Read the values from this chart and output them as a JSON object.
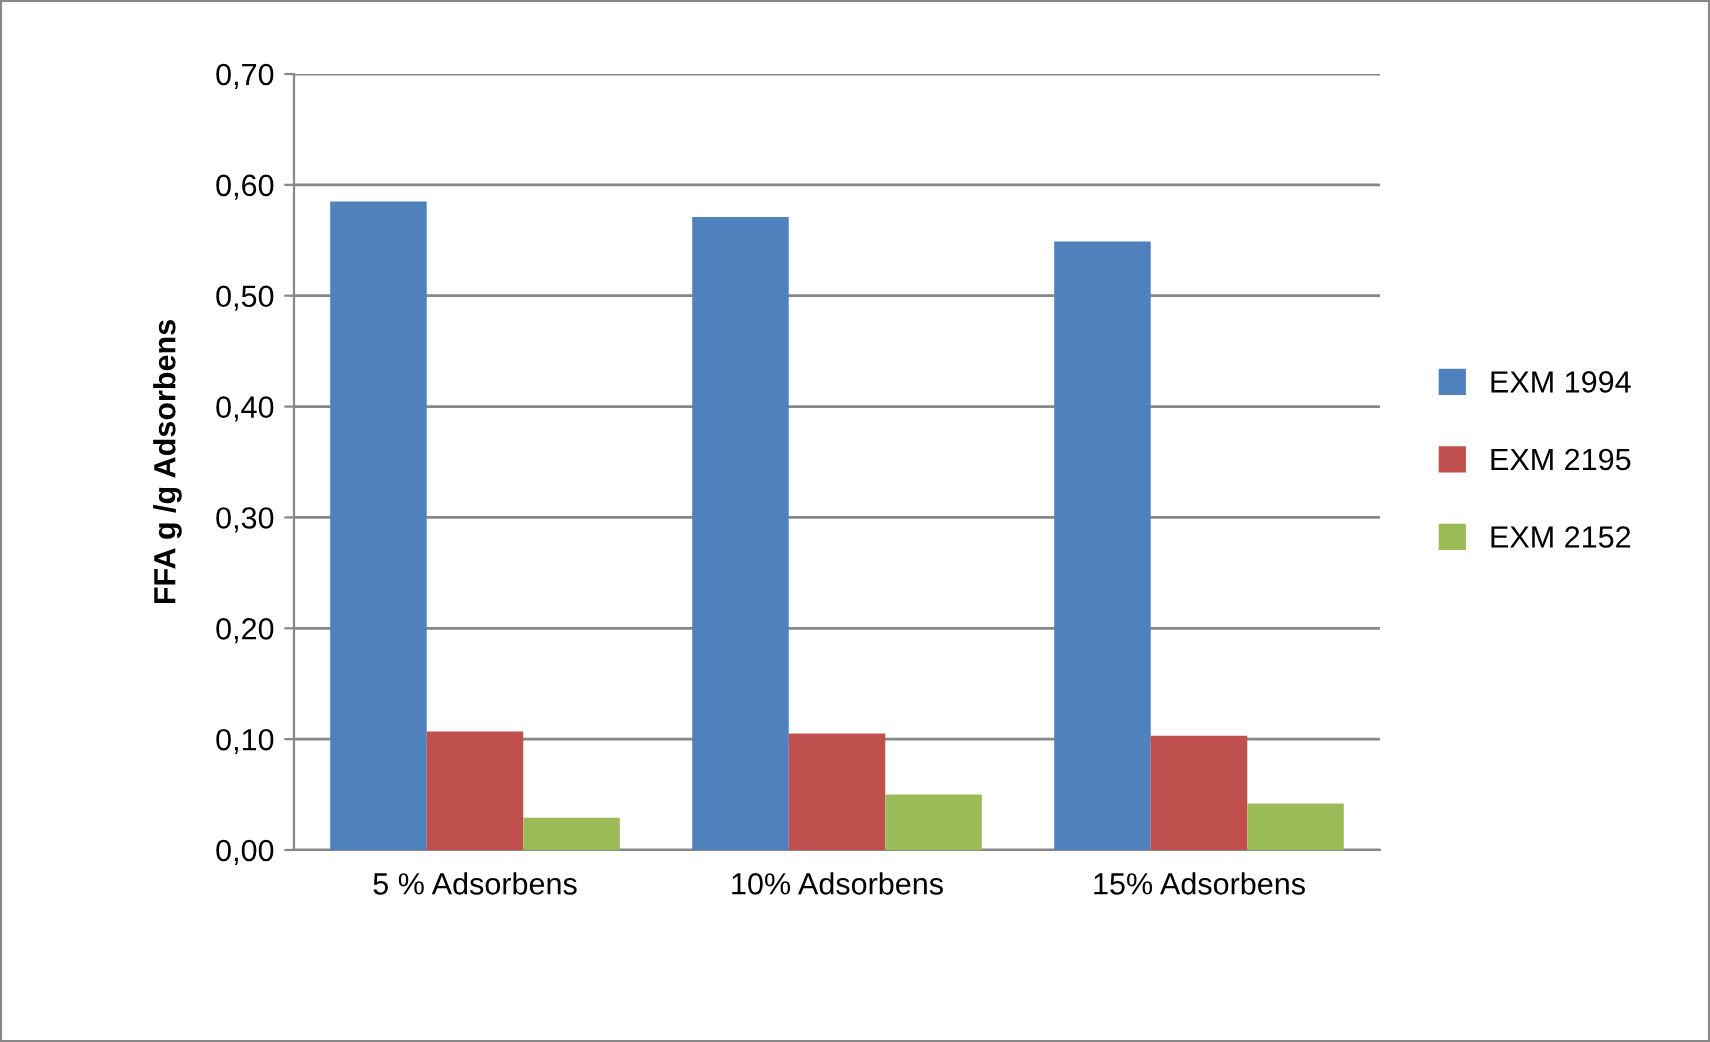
{
  "chart_data": {
    "type": "bar",
    "ylabel": "FFA g /g Adsorbens",
    "categories": [
      "5 % Adsorbens",
      "10% Adsorbens",
      "15% Adsorbens"
    ],
    "series": [
      {
        "name": "EXM 1994",
        "color": "#4f81bd",
        "values": [
          0.585,
          0.571,
          0.549
        ]
      },
      {
        "name": "EXM 2195",
        "color": "#c0504d",
        "values": [
          0.107,
          0.105,
          0.103
        ]
      },
      {
        "name": "EXM 2152",
        "color": "#9bbb59",
        "values": [
          0.029,
          0.05,
          0.042
        ]
      }
    ],
    "ylim": [
      0,
      0.7
    ],
    "yticks": [
      {
        "value": 0,
        "label": "0,00"
      },
      {
        "value": 0.1,
        "label": "0,10"
      },
      {
        "value": 0.2,
        "label": "0,20"
      },
      {
        "value": 0.3,
        "label": "0,30"
      },
      {
        "value": 0.4,
        "label": "0,40"
      },
      {
        "value": 0.5,
        "label": "0,50"
      },
      {
        "value": 0.6,
        "label": "0,60"
      },
      {
        "value": 0.7,
        "label": "0,70"
      }
    ],
    "grid": "y",
    "legend": "right"
  }
}
